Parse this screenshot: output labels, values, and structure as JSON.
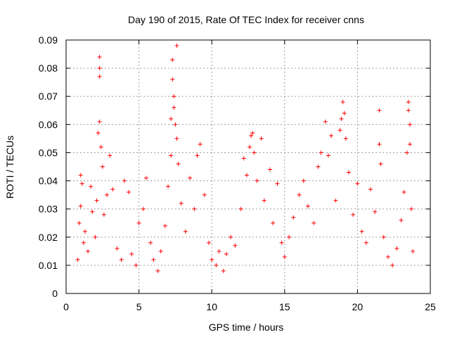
{
  "chart_data": {
    "type": "scatter",
    "title": "Day 190 of 2015, Rate Of TEC Index for receiver cnns",
    "xlabel": "GPS time / hours",
    "ylabel": "ROTI / TECUs",
    "xlim": [
      0,
      25
    ],
    "ylim": [
      0,
      0.09
    ],
    "xticks": [
      0,
      5,
      10,
      15,
      20,
      25
    ],
    "xtick_labels": [
      "0",
      "5",
      "10",
      "15",
      "20",
      "25"
    ],
    "yticks": [
      0,
      0.01,
      0.02,
      0.03,
      0.04,
      0.05,
      0.06,
      0.07,
      0.08,
      0.09
    ],
    "ytick_labels": [
      "0",
      "0.01",
      "0.02",
      "0.03",
      "0.04",
      "0.05",
      "0.06",
      "0.07",
      "0.08",
      "0.09"
    ],
    "grid": true,
    "marker": "+",
    "marker_color": "#ff0000",
    "series": [
      {
        "name": "ROTI",
        "points": [
          [
            0.8,
            0.012
          ],
          [
            0.9,
            0.025
          ],
          [
            1.0,
            0.031
          ],
          [
            1.0,
            0.042
          ],
          [
            1.1,
            0.039
          ],
          [
            1.2,
            0.018
          ],
          [
            1.3,
            0.022
          ],
          [
            1.5,
            0.015
          ],
          [
            1.7,
            0.038
          ],
          [
            1.8,
            0.029
          ],
          [
            2.0,
            0.02
          ],
          [
            2.1,
            0.033
          ],
          [
            2.2,
            0.057
          ],
          [
            2.3,
            0.084
          ],
          [
            2.3,
            0.08
          ],
          [
            2.3,
            0.077
          ],
          [
            2.3,
            0.061
          ],
          [
            2.4,
            0.052
          ],
          [
            2.5,
            0.045
          ],
          [
            2.6,
            0.028
          ],
          [
            2.8,
            0.035
          ],
          [
            3.0,
            0.049
          ],
          [
            3.2,
            0.037
          ],
          [
            3.5,
            0.016
          ],
          [
            3.8,
            0.012
          ],
          [
            4.0,
            0.04
          ],
          [
            4.3,
            0.036
          ],
          [
            4.5,
            0.014
          ],
          [
            4.8,
            0.01
          ],
          [
            5.0,
            0.025
          ],
          [
            5.3,
            0.03
          ],
          [
            5.5,
            0.041
          ],
          [
            5.8,
            0.018
          ],
          [
            6.0,
            0.012
          ],
          [
            6.3,
            0.008
          ],
          [
            6.5,
            0.015
          ],
          [
            6.8,
            0.024
          ],
          [
            7.0,
            0.038
          ],
          [
            7.2,
            0.062
          ],
          [
            7.2,
            0.049
          ],
          [
            7.3,
            0.083
          ],
          [
            7.3,
            0.076
          ],
          [
            7.4,
            0.07
          ],
          [
            7.4,
            0.066
          ],
          [
            7.5,
            0.06
          ],
          [
            7.6,
            0.088
          ],
          [
            7.6,
            0.055
          ],
          [
            7.7,
            0.046
          ],
          [
            7.9,
            0.032
          ],
          [
            8.2,
            0.022
          ],
          [
            8.5,
            0.041
          ],
          [
            8.8,
            0.03
          ],
          [
            9.0,
            0.049
          ],
          [
            9.2,
            0.053
          ],
          [
            9.5,
            0.035
          ],
          [
            9.8,
            0.018
          ],
          [
            10.0,
            0.012
          ],
          [
            10.3,
            0.01
          ],
          [
            10.5,
            0.015
          ],
          [
            10.8,
            0.008
          ],
          [
            11.0,
            0.014
          ],
          [
            11.3,
            0.02
          ],
          [
            11.6,
            0.017
          ],
          [
            12.0,
            0.03
          ],
          [
            12.2,
            0.048
          ],
          [
            12.4,
            0.042
          ],
          [
            12.6,
            0.052
          ],
          [
            12.7,
            0.056
          ],
          [
            12.8,
            0.057
          ],
          [
            12.9,
            0.05
          ],
          [
            13.1,
            0.04
          ],
          [
            13.4,
            0.055
          ],
          [
            13.6,
            0.033
          ],
          [
            14.0,
            0.044
          ],
          [
            14.2,
            0.025
          ],
          [
            14.5,
            0.039
          ],
          [
            14.8,
            0.018
          ],
          [
            15.0,
            0.013
          ],
          [
            15.3,
            0.02
          ],
          [
            15.6,
            0.027
          ],
          [
            16.0,
            0.035
          ],
          [
            16.3,
            0.04
          ],
          [
            16.6,
            0.031
          ],
          [
            17.0,
            0.025
          ],
          [
            17.3,
            0.045
          ],
          [
            17.5,
            0.05
          ],
          [
            17.8,
            0.061
          ],
          [
            18.0,
            0.049
          ],
          [
            18.2,
            0.056
          ],
          [
            18.5,
            0.033
          ],
          [
            18.8,
            0.058
          ],
          [
            18.9,
            0.062
          ],
          [
            19.0,
            0.068
          ],
          [
            19.1,
            0.064
          ],
          [
            19.2,
            0.055
          ],
          [
            19.4,
            0.043
          ],
          [
            19.7,
            0.028
          ],
          [
            20.0,
            0.039
          ],
          [
            20.3,
            0.022
          ],
          [
            20.6,
            0.018
          ],
          [
            20.9,
            0.037
          ],
          [
            21.2,
            0.029
          ],
          [
            21.5,
            0.065
          ],
          [
            21.5,
            0.053
          ],
          [
            21.6,
            0.046
          ],
          [
            21.8,
            0.02
          ],
          [
            22.1,
            0.013
          ],
          [
            22.4,
            0.01
          ],
          [
            22.7,
            0.016
          ],
          [
            23.0,
            0.026
          ],
          [
            23.2,
            0.036
          ],
          [
            23.4,
            0.05
          ],
          [
            23.5,
            0.068
          ],
          [
            23.5,
            0.065
          ],
          [
            23.6,
            0.06
          ],
          [
            23.6,
            0.053
          ],
          [
            23.7,
            0.03
          ],
          [
            23.8,
            0.015
          ]
        ]
      }
    ]
  }
}
